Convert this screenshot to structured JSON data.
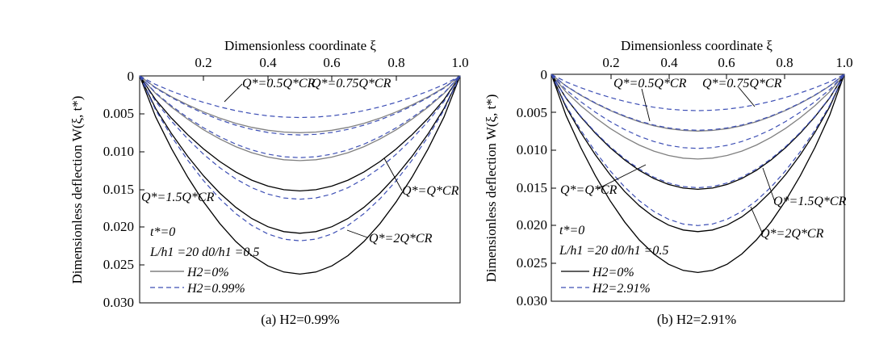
{
  "chart_data": [
    {
      "type": "line",
      "caption": "(a) H2=0.99%",
      "title": "",
      "xlabel": "Dimensionless coordinate ξ",
      "ylabel": "Dimensionless deflection W(ξ, t*)",
      "xlim": [
        0,
        1.0
      ],
      "ylim": [
        0,
        0.03
      ],
      "y_inverted": true,
      "x_axis_position": "top",
      "x_ticks": [
        "0.2",
        "0.4",
        "0.6",
        "0.8",
        "1.0"
      ],
      "y_ticks": [
        "0",
        "0.005",
        "0.010",
        "0.015",
        "0.020",
        "0.025",
        "0.030"
      ],
      "params": [
        "t*=0",
        "L/h1 =20 d0/h1 =0.5"
      ],
      "legend": {
        "position": "bottom-left",
        "entries": [
          {
            "label": "H2=0%",
            "style": "solid"
          },
          {
            "label": "H2=0.99%",
            "style": "dashed"
          }
        ]
      },
      "series": [
        {
          "name": "Q*=0.5Q*CR, H2=0%",
          "style": "solid",
          "color": "#808080",
          "shape": "symmetric",
          "x_peak": 0.5,
          "y_peak": 0.0075
        },
        {
          "name": "Q*=0.5Q*CR, H2=0.99%",
          "style": "dashed",
          "color": "#3d4fb5",
          "shape": "symmetric",
          "x_peak": 0.5,
          "y_peak": 0.0055
        },
        {
          "name": "Q*=0.75Q*CR, H2=0%",
          "style": "solid",
          "color": "#808080",
          "shape": "symmetric",
          "x_peak": 0.5,
          "y_peak": 0.0112
        },
        {
          "name": "Q*=0.75Q*CR, H2=0.99%",
          "style": "dashed",
          "color": "#3d4fb5",
          "shape": "symmetric",
          "x_peak": 0.5,
          "y_peak": 0.0078
        },
        {
          "name": "Q*=Q*CR, H2=0%",
          "style": "solid",
          "color": "#000000",
          "shape": "symmetric",
          "x_peak": 0.5,
          "y_peak": 0.0152
        },
        {
          "name": "Q*=Q*CR, H2=0.99%",
          "style": "dashed",
          "color": "#3d4fb5",
          "shape": "symmetric",
          "x_peak": 0.5,
          "y_peak": 0.0108
        },
        {
          "name": "Q*=1.5Q*CR, H2=0%",
          "style": "solid",
          "color": "#000000",
          "shape": "symmetric",
          "x_peak": 0.5,
          "y_peak": 0.0208
        },
        {
          "name": "Q*=1.5Q*CR, H2=0.99%",
          "style": "dashed",
          "color": "#3d4fb5",
          "shape": "symmetric",
          "x_peak": 0.5,
          "y_peak": 0.0163
        },
        {
          "name": "Q*=2Q*CR, H2=0%",
          "style": "solid",
          "color": "#000000",
          "shape": "symmetric",
          "x_peak": 0.5,
          "y_peak": 0.0262
        },
        {
          "name": "Q*=2Q*CR, H2=0.99%",
          "style": "dashed",
          "color": "#3d4fb5",
          "shape": "symmetric",
          "x_peak": 0.5,
          "y_peak": 0.0218
        }
      ]
    },
    {
      "type": "line",
      "caption": "(b) H2=2.91%",
      "title": "",
      "xlabel": "Dimensionless coordinate ξ",
      "ylabel": "Dimensionless deflection W(ξ, t*)",
      "xlim": [
        0,
        1.0
      ],
      "ylim": [
        0,
        0.03
      ],
      "y_inverted": true,
      "x_axis_position": "top",
      "x_ticks": [
        "0.2",
        "0.4",
        "0.6",
        "0.8",
        "1.0"
      ],
      "y_ticks": [
        "0",
        "0.005",
        "0.010",
        "0.015",
        "0.020",
        "0.025",
        "0.030"
      ],
      "params": [
        "t*=0",
        "L/h1 =20 d0/h1 =0.5"
      ],
      "legend": {
        "position": "bottom-left",
        "entries": [
          {
            "label": "H2=0%",
            "style": "solid"
          },
          {
            "label": "H2=2.91%",
            "style": "dashed"
          }
        ]
      },
      "series": [
        {
          "name": "Q*=0.5Q*CR, H2=0%",
          "style": "solid",
          "color": "#808080",
          "shape": "symmetric",
          "x_peak": 0.5,
          "y_peak": 0.0075
        },
        {
          "name": "Q*=0.5Q*CR, H2=2.91%",
          "style": "dashed",
          "color": "#3d4fb5",
          "shape": "symmetric",
          "x_peak": 0.5,
          "y_peak": 0.0048
        },
        {
          "name": "Q*=0.75Q*CR, H2=0%",
          "style": "solid",
          "color": "#808080",
          "shape": "symmetric",
          "x_peak": 0.5,
          "y_peak": 0.0112
        },
        {
          "name": "Q*=0.75Q*CR, H2=2.91%",
          "style": "dashed",
          "color": "#3d4fb5",
          "shape": "symmetric",
          "x_peak": 0.5,
          "y_peak": 0.0074
        },
        {
          "name": "Q*=Q*CR, H2=0%",
          "style": "solid",
          "color": "#000000",
          "shape": "symmetric",
          "x_peak": 0.5,
          "y_peak": 0.0152
        },
        {
          "name": "Q*=Q*CR, H2=2.91%",
          "style": "dashed",
          "color": "#3d4fb5",
          "shape": "symmetric",
          "x_peak": 0.5,
          "y_peak": 0.0098
        },
        {
          "name": "Q*=1.5Q*CR, H2=0%",
          "style": "solid",
          "color": "#000000",
          "shape": "symmetric",
          "x_peak": 0.5,
          "y_peak": 0.0208
        },
        {
          "name": "Q*=1.5Q*CR, H2=2.91%",
          "style": "dashed",
          "color": "#3d4fb5",
          "shape": "symmetric",
          "x_peak": 0.5,
          "y_peak": 0.015
        },
        {
          "name": "Q*=2Q*CR, H2=0%",
          "style": "solid",
          "color": "#000000",
          "shape": "symmetric",
          "x_peak": 0.5,
          "y_peak": 0.0262
        },
        {
          "name": "Q*=2Q*CR, H2=2.91%",
          "style": "dashed",
          "color": "#3d4fb5",
          "shape": "symmetric",
          "x_peak": 0.5,
          "y_peak": 0.02
        }
      ]
    }
  ],
  "annotations": {
    "a": [
      {
        "q_label": "Q*=0.5Q*CR",
        "series": [
          0,
          1
        ]
      },
      {
        "q_label": "Q*=0.75Q*CR",
        "series": [
          2,
          3
        ]
      },
      {
        "q_label": "Q*=Q*CR",
        "series": [
          4,
          5
        ]
      },
      {
        "q_label": "Q*=1.5Q*CR",
        "series": [
          6,
          7
        ]
      },
      {
        "q_label": "Q*=2Q*CR",
        "series": [
          8,
          9
        ]
      }
    ],
    "b": [
      {
        "q_label": "Q*=0.5Q*CR",
        "series": [
          0,
          1
        ]
      },
      {
        "q_label": "Q*=0.75Q*CR",
        "series": [
          2,
          3
        ]
      },
      {
        "q_label": "Q*=Q*CR",
        "series": [
          4,
          5
        ]
      },
      {
        "q_label": "Q*=1.5Q*CR",
        "series": [
          6,
          7
        ]
      },
      {
        "q_label": "Q*=2Q*CR",
        "series": [
          8,
          9
        ]
      }
    ]
  },
  "colors": {
    "dashed": "#3d4fb5",
    "solid_light": "#808080",
    "solid_dark": "#000000"
  }
}
